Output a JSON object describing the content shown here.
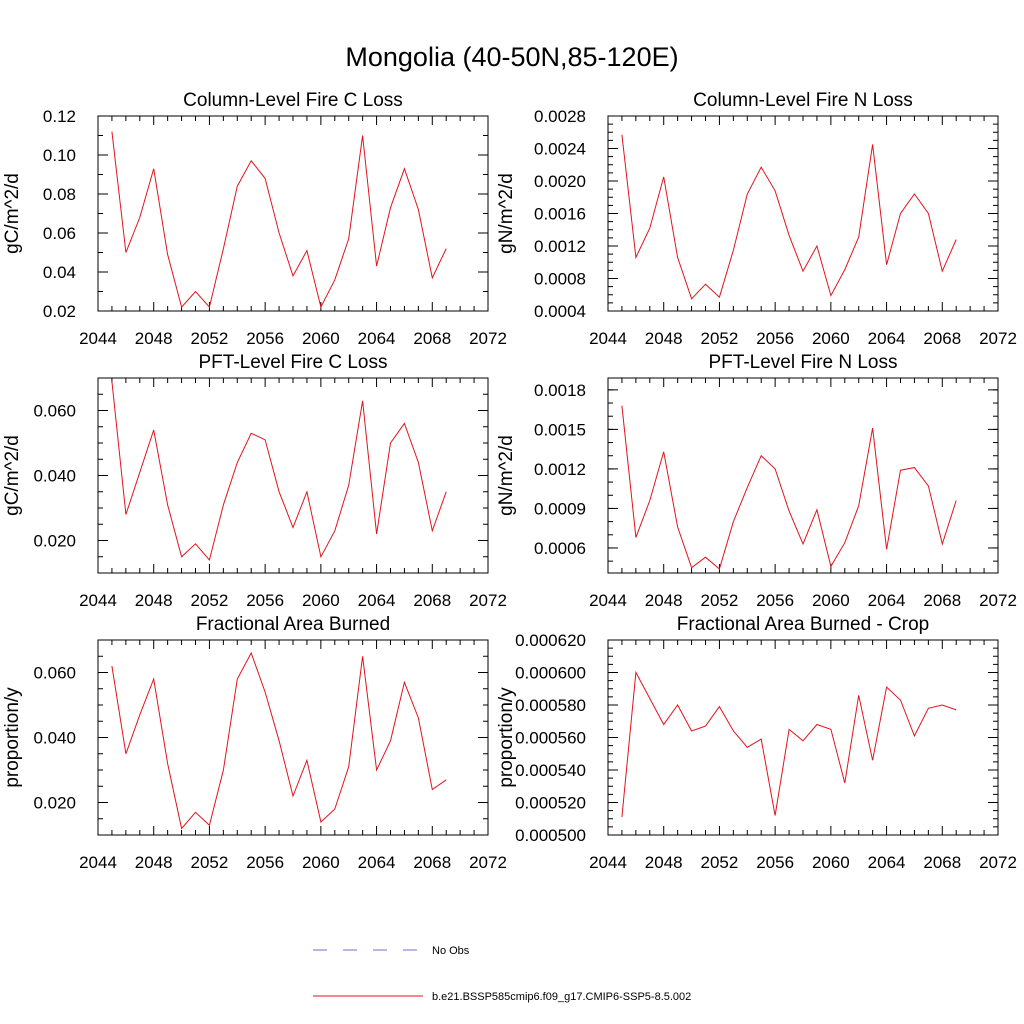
{
  "figure": {
    "title": "Mongolia (40-50N,85-120E)"
  },
  "legend": {
    "entries": [
      {
        "label": "No Obs",
        "color": "#6f6fc8",
        "dash": true
      },
      {
        "label": "b.e21.BSSP585cmip6.f09_g17.CMIP6-SSP5-8.5.002",
        "color": "#e0141e",
        "dash": false
      }
    ]
  },
  "chart_data": [
    {
      "type": "line",
      "title": "Column-Level Fire C Loss",
      "ylabel": "gC/m^2/d",
      "xlim": [
        2044,
        2072
      ],
      "x_ticks": [
        "2044",
        "2048",
        "2052",
        "2056",
        "2060",
        "2064",
        "2068",
        "2072"
      ],
      "ylim": [
        0.02,
        0.12
      ],
      "y_ticks": [
        "0.02",
        "0.04",
        "0.06",
        "0.08",
        "0.10",
        "0.12"
      ],
      "y_minor": 0.01,
      "x": [
        2045,
        2046,
        2047,
        2048,
        2049,
        2050,
        2051,
        2052,
        2053,
        2054,
        2055,
        2056,
        2057,
        2058,
        2059,
        2060,
        2061,
        2062,
        2063,
        2064,
        2065,
        2066,
        2067,
        2068,
        2069
      ],
      "series": [
        {
          "values": [
            0.112,
            0.05,
            0.068,
            0.093,
            0.049,
            0.022,
            0.03,
            0.022,
            0.052,
            0.084,
            0.097,
            0.088,
            0.06,
            0.038,
            0.051,
            0.022,
            0.036,
            0.057,
            0.11,
            0.043,
            0.073,
            0.093,
            0.072,
            0.037,
            0.052
          ]
        }
      ]
    },
    {
      "type": "line",
      "title": "Column-Level Fire N Loss",
      "ylabel": "gN/m^2/d",
      "xlim": [
        2044,
        2072
      ],
      "x_ticks": [
        "2044",
        "2048",
        "2052",
        "2056",
        "2060",
        "2064",
        "2068",
        "2072"
      ],
      "ylim": [
        0.0004,
        0.0028
      ],
      "y_ticks": [
        "0.0004",
        "0.0008",
        "0.0012",
        "0.0016",
        "0.0020",
        "0.0024",
        "0.0028"
      ],
      "y_minor": 0.0001,
      "x": [
        2045,
        2046,
        2047,
        2048,
        2049,
        2050,
        2051,
        2052,
        2053,
        2054,
        2055,
        2056,
        2057,
        2058,
        2059,
        2060,
        2061,
        2062,
        2063,
        2064,
        2065,
        2066,
        2067,
        2068,
        2069
      ],
      "series": [
        {
          "values": [
            0.00257,
            0.00106,
            0.00142,
            0.00205,
            0.00106,
            0.00055,
            0.00073,
            0.00057,
            0.00115,
            0.00184,
            0.00217,
            0.00188,
            0.00133,
            0.00089,
            0.0012,
            0.00059,
            0.00091,
            0.00131,
            0.00245,
            0.00097,
            0.0016,
            0.00184,
            0.0016,
            0.00089,
            0.00128
          ]
        }
      ]
    },
    {
      "type": "line",
      "title": "PFT-Level Fire C Loss",
      "ylabel": "gC/m^2/d",
      "xlim": [
        2044,
        2072
      ],
      "x_ticks": [
        "2044",
        "2048",
        "2052",
        "2056",
        "2060",
        "2064",
        "2068",
        "2072"
      ],
      "ylim": [
        0.01,
        0.07
      ],
      "y_ticks": [
        "0.020",
        "0.040",
        "0.060"
      ],
      "y_tick_values": [
        0.02,
        0.04,
        0.06
      ],
      "y_minor": 0.005,
      "x": [
        2045,
        2046,
        2047,
        2048,
        2049,
        2050,
        2051,
        2052,
        2053,
        2054,
        2055,
        2056,
        2057,
        2058,
        2059,
        2060,
        2061,
        2062,
        2063,
        2064,
        2065,
        2066,
        2067,
        2068,
        2069
      ],
      "series": [
        {
          "values": [
            0.069,
            0.028,
            0.041,
            0.054,
            0.031,
            0.015,
            0.019,
            0.014,
            0.031,
            0.044,
            0.053,
            0.051,
            0.035,
            0.024,
            0.035,
            0.015,
            0.023,
            0.037,
            0.063,
            0.022,
            0.05,
            0.056,
            0.044,
            0.023,
            0.035
          ]
        }
      ]
    },
    {
      "type": "line",
      "title": "PFT-Level Fire N Loss",
      "ylabel": "gN/m^2/d",
      "xlim": [
        2044,
        2072
      ],
      "x_ticks": [
        "2044",
        "2048",
        "2052",
        "2056",
        "2060",
        "2064",
        "2068",
        "2072"
      ],
      "ylim": [
        0.00041,
        0.00189
      ],
      "y_ticks": [
        "0.0006",
        "0.0009",
        "0.0012",
        "0.0015",
        "0.0018"
      ],
      "y_tick_values": [
        0.0006,
        0.0009,
        0.0012,
        0.0015,
        0.0018
      ],
      "y_minor": 0.0001,
      "x": [
        2045,
        2046,
        2047,
        2048,
        2049,
        2050,
        2051,
        2052,
        2053,
        2054,
        2055,
        2056,
        2057,
        2058,
        2059,
        2060,
        2061,
        2062,
        2063,
        2064,
        2065,
        2066,
        2067,
        2068,
        2069
      ],
      "series": [
        {
          "values": [
            0.00168,
            0.00068,
            0.00096,
            0.00133,
            0.00076,
            0.00045,
            0.00053,
            0.00044,
            0.0008,
            0.00106,
            0.0013,
            0.0012,
            0.00088,
            0.00063,
            0.00089,
            0.00046,
            0.00064,
            0.00092,
            0.00151,
            0.00059,
            0.00119,
            0.00121,
            0.00107,
            0.00063,
            0.00096
          ]
        }
      ]
    },
    {
      "type": "line",
      "title": "Fractional Area Burned",
      "ylabel": "proportion/y",
      "xlim": [
        2044,
        2072
      ],
      "x_ticks": [
        "2044",
        "2048",
        "2052",
        "2056",
        "2060",
        "2064",
        "2068",
        "2072"
      ],
      "ylim": [
        0.01,
        0.07
      ],
      "y_ticks": [
        "0.020",
        "0.040",
        "0.060"
      ],
      "y_tick_values": [
        0.02,
        0.04,
        0.06
      ],
      "y_minor": 0.005,
      "x": [
        2045,
        2046,
        2047,
        2048,
        2049,
        2050,
        2051,
        2052,
        2053,
        2054,
        2055,
        2056,
        2057,
        2058,
        2059,
        2060,
        2061,
        2062,
        2063,
        2064,
        2065,
        2066,
        2067,
        2068,
        2069
      ],
      "series": [
        {
          "values": [
            0.062,
            0.035,
            0.047,
            0.058,
            0.032,
            0.012,
            0.017,
            0.013,
            0.03,
            0.058,
            0.066,
            0.054,
            0.039,
            0.022,
            0.033,
            0.014,
            0.018,
            0.031,
            0.065,
            0.03,
            0.039,
            0.057,
            0.046,
            0.024,
            0.027
          ]
        }
      ]
    },
    {
      "type": "line",
      "title": "Fractional Area Burned - Crop",
      "ylabel": "proportion/y",
      "xlim": [
        2044,
        2072
      ],
      "x_ticks": [
        "2044",
        "2048",
        "2052",
        "2056",
        "2060",
        "2064",
        "2068",
        "2072"
      ],
      "ylim": [
        0.0005,
        0.00062
      ],
      "y_ticks": [
        "0.000500",
        "0.000520",
        "0.000540",
        "0.000560",
        "0.000580",
        "0.000600",
        "0.000620"
      ],
      "y_minor": 5e-06,
      "x": [
        2045,
        2046,
        2047,
        2048,
        2049,
        2050,
        2051,
        2052,
        2053,
        2054,
        2055,
        2056,
        2057,
        2058,
        2059,
        2060,
        2061,
        2062,
        2063,
        2064,
        2065,
        2066,
        2067,
        2068,
        2069
      ],
      "series": [
        {
          "values": [
            0.000511,
            0.0006,
            0.000584,
            0.000568,
            0.00058,
            0.000564,
            0.000567,
            0.000579,
            0.000564,
            0.000554,
            0.000559,
            0.000512,
            0.000565,
            0.000558,
            0.000568,
            0.000565,
            0.000532,
            0.000586,
            0.000546,
            0.000591,
            0.000583,
            0.000561,
            0.000578,
            0.00058,
            0.000577
          ]
        }
      ]
    }
  ]
}
